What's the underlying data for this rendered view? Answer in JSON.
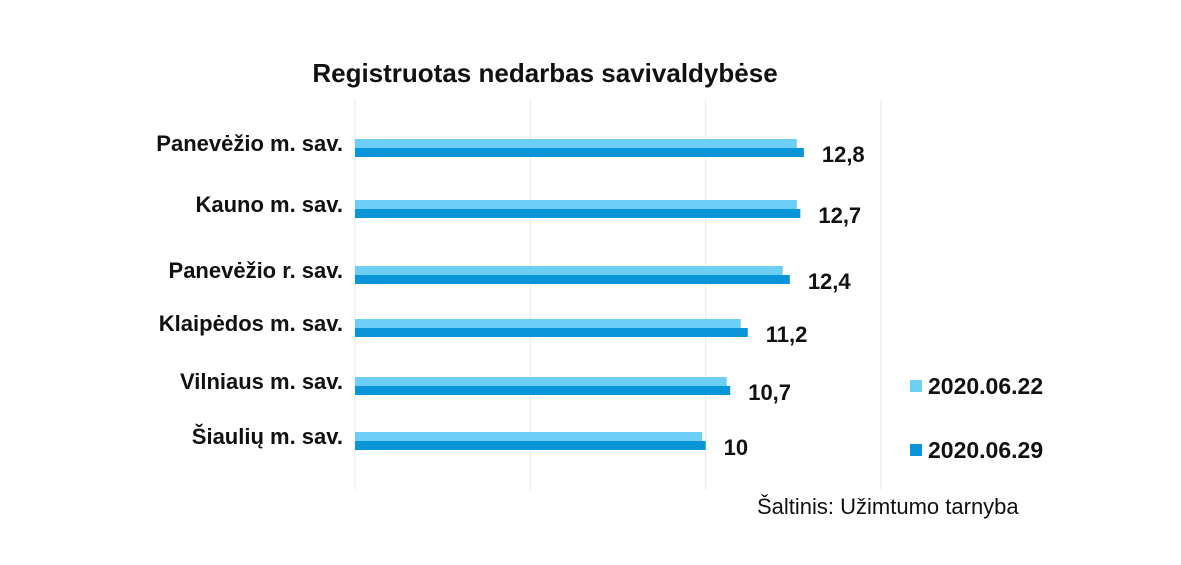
{
  "chart_data": {
    "type": "bar",
    "orientation": "horizontal",
    "title": "Registruotas nedarbas savivaldybėse",
    "categories": [
      "Panevėžio m. sav.",
      "Kauno m. sav.",
      "Panevėžio r. sav.",
      "Klaipėdos m. sav.",
      "Vilniaus m. sav.",
      "Šiaulių m. sav."
    ],
    "series": [
      {
        "name": "2020.06.22",
        "color": "#6dcff6",
        "values": [
          12.6,
          12.6,
          12.2,
          11.0,
          10.6,
          9.9
        ]
      },
      {
        "name": "2020.06.29",
        "color": "#0a95d8",
        "values": [
          12.8,
          12.7,
          12.4,
          11.2,
          10.7,
          10.0
        ],
        "data_labels": [
          "12,8",
          "12,7",
          "12,4",
          "11,2",
          "10,7",
          "10"
        ]
      }
    ],
    "xlim": [
      0,
      15
    ],
    "grid": true,
    "legend": "right"
  },
  "source": "Šaltinis: Užimtumo tarnyba"
}
